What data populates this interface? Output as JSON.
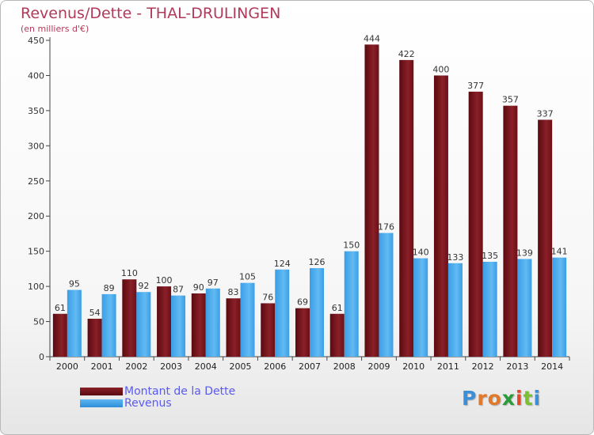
{
  "title": "Revenus/Dette - THAL-DRULINGEN",
  "subtitle": "(en milliers d'€)",
  "colors": {
    "debt": "#6b0f16",
    "debt_light": "#9a2a30",
    "revenue": "#2e8fd8",
    "revenue_light": "#5cb5f0",
    "title": "#b03a5a"
  },
  "legend": {
    "debt_label": "Montant de la Dette",
    "revenue_label": "Revenus"
  },
  "logo": {
    "text": "Proxiti"
  },
  "chart_data": {
    "type": "bar",
    "title": "Revenus/Dette - THAL-DRULINGEN",
    "subtitle": "(en milliers d'€)",
    "categories": [
      "2000",
      "2001",
      "2002",
      "2003",
      "2004",
      "2005",
      "2006",
      "2007",
      "2008",
      "2009",
      "2010",
      "2011",
      "2012",
      "2013",
      "2014"
    ],
    "series": [
      {
        "name": "Montant de la Dette",
        "values": [
          61,
          54,
          110,
          100,
          90,
          83,
          76,
          69,
          61,
          444,
          422,
          400,
          377,
          357,
          337
        ]
      },
      {
        "name": "Revenus",
        "values": [
          95,
          89,
          92,
          87,
          97,
          105,
          124,
          126,
          150,
          176,
          140,
          133,
          135,
          139,
          141
        ]
      }
    ],
    "ylim": [
      0,
      450
    ],
    "yticks": [
      0,
      50,
      100,
      150,
      200,
      250,
      300,
      350,
      400,
      450
    ],
    "grid": false,
    "legend_position": "bottom-left"
  }
}
